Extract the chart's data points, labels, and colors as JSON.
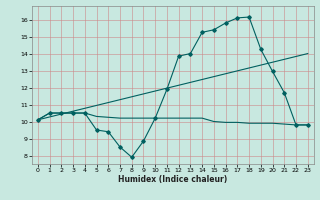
{
  "xlabel": "Humidex (Indice chaleur)",
  "xlim": [
    -0.5,
    23.5
  ],
  "ylim": [
    7.5,
    16.8
  ],
  "yticks": [
    8,
    9,
    10,
    11,
    12,
    13,
    14,
    15,
    16
  ],
  "xticks": [
    0,
    1,
    2,
    3,
    4,
    5,
    6,
    7,
    8,
    9,
    10,
    11,
    12,
    13,
    14,
    15,
    16,
    17,
    18,
    19,
    20,
    21,
    22,
    23
  ],
  "bg_color": "#c8e8e0",
  "grid_color": "#b0b0b0",
  "line_color": "#006060",
  "line1_x": [
    0,
    1,
    2,
    3,
    4,
    5,
    6,
    7,
    8,
    9,
    10,
    11,
    12,
    13,
    14,
    15,
    16,
    17,
    18,
    19,
    20,
    21,
    22,
    23
  ],
  "line1_y": [
    10.1,
    10.5,
    10.5,
    10.5,
    10.5,
    9.5,
    9.4,
    8.5,
    7.9,
    8.85,
    10.2,
    11.9,
    13.85,
    14.0,
    15.25,
    15.4,
    15.8,
    16.1,
    16.15,
    14.25,
    12.95,
    11.7,
    9.8,
    9.8
  ],
  "line2_x": [
    0,
    23
  ],
  "line2_y": [
    10.1,
    14.0
  ],
  "line3_x": [
    0,
    1,
    2,
    3,
    4,
    5,
    6,
    7,
    8,
    9,
    10,
    11,
    12,
    13,
    14,
    15,
    16,
    17,
    18,
    19,
    20,
    21,
    22,
    23
  ],
  "line3_y": [
    10.1,
    10.5,
    10.5,
    10.5,
    10.5,
    10.3,
    10.25,
    10.2,
    10.2,
    10.2,
    10.2,
    10.2,
    10.2,
    10.2,
    10.2,
    10.0,
    9.95,
    9.95,
    9.9,
    9.9,
    9.9,
    9.85,
    9.8,
    9.8
  ]
}
